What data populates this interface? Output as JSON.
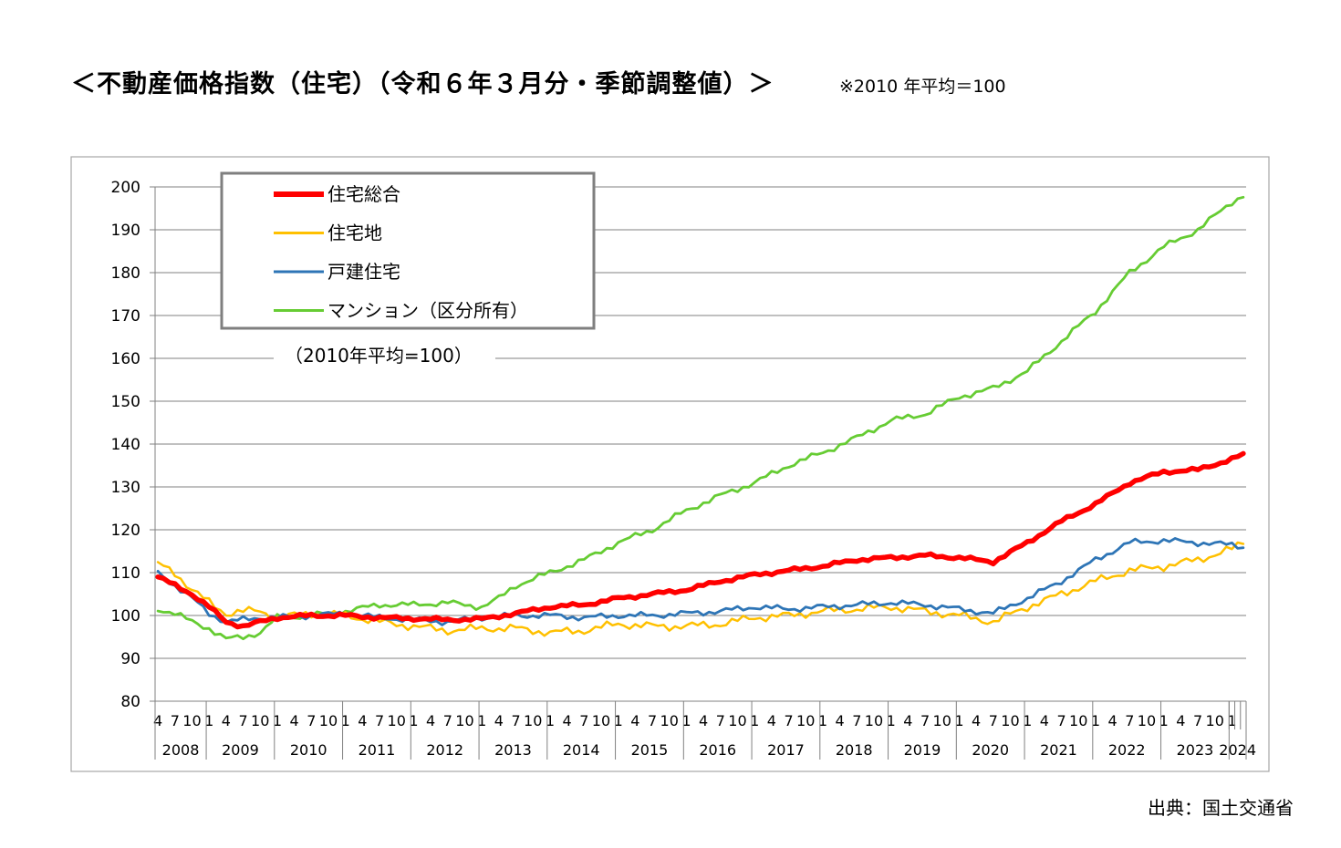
{
  "title": "＜不動産価格指数（住宅）（令和６年３月分・季節調整値）＞",
  "note": "※2010 年平均＝100",
  "source": "出典：国土交通省",
  "colors": {
    "住宅総合": "#ff0000",
    "住宅地": "#ffc000",
    "戸建住宅": "#2e75b6",
    "マンション（区分所有）": "#66cc33",
    "grid": "#808080",
    "legend_border": "#7f7f7f"
  },
  "chart_data": {
    "type": "line",
    "title": "",
    "annotation": "（2010年平均=100）",
    "ylim": [
      80,
      200
    ],
    "yticks": [
      80,
      90,
      100,
      110,
      120,
      130,
      140,
      150,
      160,
      170,
      180,
      190,
      200
    ],
    "grid": true,
    "legend_position": "top-left",
    "x_start": "2008-04",
    "x_end": "2024-03",
    "month_tick_labels": [
      "4",
      "7",
      "10",
      "1"
    ],
    "years": [
      "2008",
      "2009",
      "2010",
      "2011",
      "2012",
      "2013",
      "2014",
      "2015",
      "2016",
      "2017",
      "2018",
      "2019",
      "2020",
      "2021",
      "2022",
      "2023",
      "2024"
    ],
    "series": [
      {
        "name": "住宅総合",
        "keypoints": [
          [
            "2008-04",
            109
          ],
          [
            "2008-07",
            107
          ],
          [
            "2008-10",
            105
          ],
          [
            "2009-01",
            102
          ],
          [
            "2009-04",
            98.5
          ],
          [
            "2009-07",
            97.5
          ],
          [
            "2009-10",
            98.5
          ],
          [
            "2010-01",
            99.5
          ],
          [
            "2010-07",
            100
          ],
          [
            "2011-01",
            100
          ],
          [
            "2011-07",
            99.5
          ],
          [
            "2012-01",
            99.3
          ],
          [
            "2012-07",
            99
          ],
          [
            "2013-01",
            99.2
          ],
          [
            "2013-07",
            100.5
          ],
          [
            "2014-01",
            102
          ],
          [
            "2014-07",
            102.5
          ],
          [
            "2015-01",
            104
          ],
          [
            "2015-07",
            105
          ],
          [
            "2016-01",
            106
          ],
          [
            "2016-07",
            108
          ],
          [
            "2017-01",
            109.5
          ],
          [
            "2017-07",
            110.5
          ],
          [
            "2018-01",
            111.5
          ],
          [
            "2018-07",
            113
          ],
          [
            "2019-01",
            113.5
          ],
          [
            "2019-07",
            114
          ],
          [
            "2020-01",
            113.5
          ],
          [
            "2020-07",
            112.5
          ],
          [
            "2021-01",
            117
          ],
          [
            "2021-07",
            122
          ],
          [
            "2022-01",
            126
          ],
          [
            "2022-07",
            131
          ],
          [
            "2023-01",
            133.5
          ],
          [
            "2023-07",
            134
          ],
          [
            "2024-01",
            136.5
          ],
          [
            "2024-03",
            137.5
          ]
        ]
      },
      {
        "name": "住宅地",
        "keypoints": [
          [
            "2008-04",
            112
          ],
          [
            "2008-07",
            110
          ],
          [
            "2008-10",
            106
          ],
          [
            "2009-01",
            103
          ],
          [
            "2009-04",
            100.5
          ],
          [
            "2009-07",
            101
          ],
          [
            "2009-10",
            101
          ],
          [
            "2010-01",
            99.5
          ],
          [
            "2010-07",
            100.5
          ],
          [
            "2011-01",
            100
          ],
          [
            "2011-07",
            98.5
          ],
          [
            "2012-01",
            97.5
          ],
          [
            "2012-07",
            96.5
          ],
          [
            "2013-01",
            97
          ],
          [
            "2013-07",
            97
          ],
          [
            "2014-01",
            96
          ],
          [
            "2014-07",
            96.5
          ],
          [
            "2015-01",
            98
          ],
          [
            "2015-07",
            97.5
          ],
          [
            "2016-01",
            97.5
          ],
          [
            "2016-07",
            98
          ],
          [
            "2017-01",
            99.5
          ],
          [
            "2017-07",
            100
          ],
          [
            "2018-01",
            101
          ],
          [
            "2018-07",
            101.5
          ],
          [
            "2019-01",
            102
          ],
          [
            "2019-07",
            101
          ],
          [
            "2020-01",
            100
          ],
          [
            "2020-07",
            98.5
          ],
          [
            "2021-01",
            102
          ],
          [
            "2021-07",
            105
          ],
          [
            "2022-01",
            108
          ],
          [
            "2022-07",
            110.5
          ],
          [
            "2023-01",
            111.5
          ],
          [
            "2023-07",
            113
          ],
          [
            "2024-01",
            115.5
          ],
          [
            "2024-03",
            117
          ]
        ]
      },
      {
        "name": "戸建住宅",
        "keypoints": [
          [
            "2008-04",
            110
          ],
          [
            "2008-07",
            107
          ],
          [
            "2008-10",
            104
          ],
          [
            "2009-01",
            100.5
          ],
          [
            "2009-04",
            98.5
          ],
          [
            "2009-07",
            99
          ],
          [
            "2009-10",
            99.5
          ],
          [
            "2010-01",
            99.5
          ],
          [
            "2010-07",
            100
          ],
          [
            "2011-01",
            100.5
          ],
          [
            "2011-07",
            99.5
          ],
          [
            "2012-01",
            99
          ],
          [
            "2012-07",
            98.5
          ],
          [
            "2013-01",
            99.5
          ],
          [
            "2013-07",
            100
          ],
          [
            "2014-01",
            100
          ],
          [
            "2014-07",
            99.5
          ],
          [
            "2015-01",
            100
          ],
          [
            "2015-07",
            100
          ],
          [
            "2016-01",
            100.5
          ],
          [
            "2016-07",
            101
          ],
          [
            "2017-01",
            102
          ],
          [
            "2017-07",
            101.5
          ],
          [
            "2018-01",
            102
          ],
          [
            "2018-07",
            102.5
          ],
          [
            "2019-01",
            103
          ],
          [
            "2019-07",
            102.5
          ],
          [
            "2020-01",
            101.5
          ],
          [
            "2020-07",
            100.5
          ],
          [
            "2021-01",
            104
          ],
          [
            "2021-07",
            108
          ],
          [
            "2022-01",
            113
          ],
          [
            "2022-07",
            117
          ],
          [
            "2023-01",
            117.5
          ],
          [
            "2023-07",
            117
          ],
          [
            "2024-01",
            116.5
          ],
          [
            "2024-03",
            116
          ]
        ]
      },
      {
        "name": "マンション（区分所有）",
        "keypoints": [
          [
            "2008-04",
            101.5
          ],
          [
            "2008-07",
            100.5
          ],
          [
            "2008-10",
            98.5
          ],
          [
            "2009-01",
            97
          ],
          [
            "2009-04",
            94.5
          ],
          [
            "2009-07",
            95
          ],
          [
            "2009-10",
            96
          ],
          [
            "2010-01",
            99.5
          ],
          [
            "2010-07",
            100
          ],
          [
            "2011-01",
            101
          ],
          [
            "2011-07",
            102.5
          ],
          [
            "2012-01",
            102.5
          ],
          [
            "2012-07",
            103
          ],
          [
            "2013-01",
            102
          ],
          [
            "2013-04",
            104
          ],
          [
            "2013-07",
            107
          ],
          [
            "2014-01",
            110
          ],
          [
            "2014-07",
            113
          ],
          [
            "2015-01",
            117
          ],
          [
            "2015-07",
            120
          ],
          [
            "2016-01",
            124.5
          ],
          [
            "2016-07",
            128
          ],
          [
            "2017-01",
            131
          ],
          [
            "2017-07",
            135
          ],
          [
            "2018-01",
            138
          ],
          [
            "2018-07",
            141.5
          ],
          [
            "2019-01",
            145.5
          ],
          [
            "2019-07",
            147
          ],
          [
            "2020-01",
            151
          ],
          [
            "2020-07",
            153
          ],
          [
            "2021-01",
            157
          ],
          [
            "2021-07",
            164
          ],
          [
            "2022-01",
            171
          ],
          [
            "2022-07",
            180
          ],
          [
            "2023-01",
            186
          ],
          [
            "2023-07",
            190
          ],
          [
            "2024-01",
            196.5
          ],
          [
            "2024-03",
            198
          ]
        ]
      }
    ]
  }
}
